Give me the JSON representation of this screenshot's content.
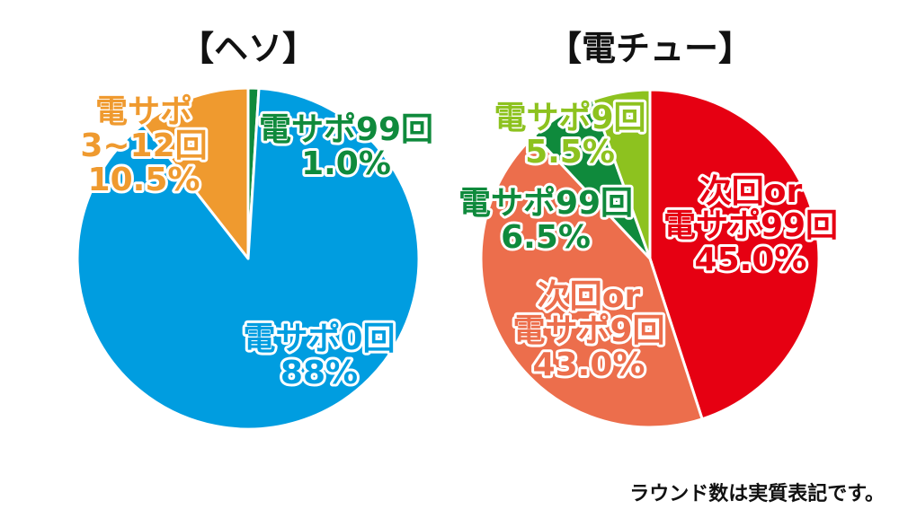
{
  "chart_data": [
    {
      "type": "pie",
      "title": "【ヘソ】",
      "slices": [
        {
          "label": [
            "電サポ99回",
            "1.0%"
          ],
          "value": 1.0,
          "color": "#0f8a3c"
        },
        {
          "label": [
            "電サポ0回",
            "88%"
          ],
          "value": 88.0,
          "color": "#009de0"
        },
        {
          "label": [
            "電サポ",
            "3~12回",
            "10.5%"
          ],
          "value": 10.5,
          "color": "#ef9a2f"
        }
      ]
    },
    {
      "type": "pie",
      "title": "【電チュー】",
      "slices": [
        {
          "label": [
            "次回or",
            "電サポ99回",
            "45.0%"
          ],
          "value": 45.0,
          "color": "#e60012"
        },
        {
          "label": [
            "次回or",
            "電サポ9回",
            "43.0%"
          ],
          "value": 43.0,
          "color": "#ec6e4c"
        },
        {
          "label": [
            "電サポ99回",
            "6.5%"
          ],
          "value": 6.5,
          "color": "#0f8a3c"
        },
        {
          "label": [
            "電サポ9回",
            "5.5%"
          ],
          "value": 5.5,
          "color": "#8dc21f"
        }
      ]
    }
  ],
  "footnote": "ラウンド数は実質表記です。"
}
